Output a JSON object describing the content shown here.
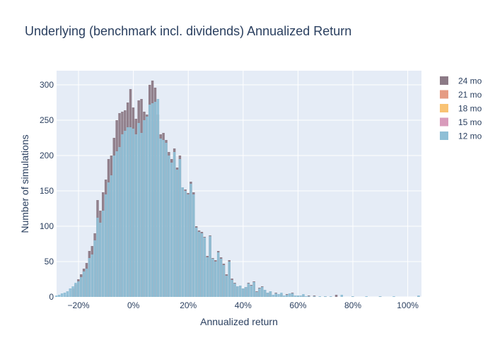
{
  "chart_data": {
    "type": "bar",
    "barmode": "overlay",
    "title": "Underlying (benchmark incl. dividends) Annualized Return",
    "xlabel": "Annualized return",
    "ylabel": "Number of simulations",
    "xlim": [
      -0.28,
      1.05
    ],
    "ylim": [
      0,
      320
    ],
    "bin_width": 0.005,
    "x_ticks": [
      {
        "value": -0.2,
        "label": "−20%"
      },
      {
        "value": 0.0,
        "label": "0%"
      },
      {
        "value": 0.2,
        "label": "20%"
      },
      {
        "value": 0.4,
        "label": "40%"
      },
      {
        "value": 0.6,
        "label": "60%"
      },
      {
        "value": 0.8,
        "label": "80%"
      },
      {
        "value": 1.0,
        "label": "100%"
      }
    ],
    "y_ticks": [
      0,
      50,
      100,
      150,
      200,
      250,
      300
    ],
    "grid": true,
    "legend_position": "top-right",
    "series": [
      {
        "name": "24 mo",
        "color": "#8c7a86",
        "points": [
          [
            -0.24,
            2
          ],
          [
            -0.22,
            12
          ],
          [
            -0.21,
            18
          ],
          [
            -0.2,
            25
          ],
          [
            -0.19,
            32
          ],
          [
            -0.18,
            40
          ],
          [
            -0.17,
            48
          ],
          [
            -0.16,
            65
          ],
          [
            -0.15,
            72
          ],
          [
            -0.14,
            90
          ],
          [
            -0.13,
            137
          ],
          [
            -0.12,
            122
          ],
          [
            -0.11,
            148
          ],
          [
            -0.1,
            166
          ],
          [
            -0.09,
            195
          ],
          [
            -0.08,
            200
          ],
          [
            -0.07,
            225
          ],
          [
            -0.06,
            250
          ],
          [
            -0.05,
            260
          ],
          [
            -0.04,
            262
          ],
          [
            -0.03,
            264
          ],
          [
            -0.02,
            275
          ],
          [
            -0.01,
            294
          ],
          [
            0.0,
            268
          ],
          [
            0.01,
            252
          ],
          [
            0.02,
            278
          ],
          [
            0.03,
            280
          ],
          [
            0.04,
            262
          ],
          [
            0.05,
            258
          ],
          [
            0.06,
            300
          ],
          [
            0.07,
            306
          ],
          [
            0.08,
            296
          ],
          [
            0.09,
            258
          ],
          [
            0.1,
            230
          ],
          [
            0.11,
            232
          ],
          [
            0.12,
            222
          ],
          [
            0.13,
            205
          ],
          [
            0.14,
            195
          ],
          [
            0.15,
            210
          ],
          [
            0.16,
            183
          ],
          [
            0.17,
            200
          ],
          [
            0.18,
            155
          ],
          [
            0.19,
            152
          ],
          [
            0.2,
            147
          ],
          [
            0.21,
            163
          ],
          [
            0.22,
            148
          ],
          [
            0.23,
            100
          ],
          [
            0.24,
            94
          ],
          [
            0.25,
            92
          ],
          [
            0.26,
            85
          ],
          [
            0.27,
            58
          ],
          [
            0.28,
            87
          ],
          [
            0.29,
            55
          ],
          [
            0.3,
            52
          ],
          [
            0.31,
            65
          ],
          [
            0.32,
            56
          ],
          [
            0.33,
            47
          ],
          [
            0.34,
            32
          ],
          [
            0.35,
            52
          ],
          [
            0.36,
            26
          ],
          [
            0.37,
            20
          ],
          [
            0.38,
            15
          ],
          [
            0.39,
            16
          ],
          [
            0.4,
            12
          ],
          [
            0.41,
            14
          ],
          [
            0.42,
            20
          ],
          [
            0.43,
            17
          ],
          [
            0.44,
            22
          ],
          [
            0.45,
            8
          ],
          [
            0.46,
            13
          ],
          [
            0.47,
            15
          ],
          [
            0.48,
            10
          ],
          [
            0.49,
            6
          ],
          [
            0.5,
            8
          ],
          [
            0.52,
            6
          ],
          [
            0.54,
            4
          ],
          [
            0.56,
            4
          ],
          [
            0.58,
            6
          ],
          [
            0.6,
            2
          ],
          [
            0.62,
            2
          ],
          [
            0.64,
            2
          ],
          [
            0.66,
            2
          ],
          [
            0.7,
            1
          ],
          [
            0.74,
            3
          ],
          [
            0.8,
            1
          ],
          [
            0.9,
            1
          ],
          [
            1.04,
            1
          ]
        ]
      },
      {
        "name": "21 mo",
        "color": "#e59c84",
        "points": []
      },
      {
        "name": "18 mo",
        "color": "#f9c374",
        "points": []
      },
      {
        "name": "15 mo",
        "color": "#d89bbb",
        "points": []
      },
      {
        "name": "12 mo",
        "color": "#8fbfd6",
        "points": [
          [
            -0.28,
            2
          ],
          [
            -0.27,
            3
          ],
          [
            -0.26,
            5
          ],
          [
            -0.25,
            6
          ],
          [
            -0.24,
            8
          ],
          [
            -0.23,
            12
          ],
          [
            -0.22,
            15
          ],
          [
            -0.21,
            20
          ],
          [
            -0.2,
            22
          ],
          [
            -0.19,
            28
          ],
          [
            -0.18,
            36
          ],
          [
            -0.17,
            40
          ],
          [
            -0.16,
            55
          ],
          [
            -0.15,
            60
          ],
          [
            -0.14,
            80
          ],
          [
            -0.13,
            112
          ],
          [
            -0.12,
            105
          ],
          [
            -0.11,
            122
          ],
          [
            -0.1,
            145
          ],
          [
            -0.09,
            162
          ],
          [
            -0.08,
            172
          ],
          [
            -0.07,
            200
          ],
          [
            -0.06,
            206
          ],
          [
            -0.05,
            212
          ],
          [
            -0.04,
            230
          ],
          [
            -0.03,
            235
          ],
          [
            -0.02,
            240
          ],
          [
            -0.01,
            240
          ],
          [
            0.0,
            238
          ],
          [
            0.01,
            230
          ],
          [
            0.02,
            246
          ],
          [
            0.03,
            232
          ],
          [
            0.04,
            250
          ],
          [
            0.05,
            255
          ],
          [
            0.06,
            272
          ],
          [
            0.07,
            274
          ],
          [
            0.08,
            276
          ],
          [
            0.09,
            280
          ],
          [
            0.1,
            224
          ],
          [
            0.11,
            222
          ],
          [
            0.12,
            218
          ],
          [
            0.13,
            200
          ],
          [
            0.14,
            190
          ],
          [
            0.15,
            205
          ],
          [
            0.16,
            180
          ],
          [
            0.17,
            195
          ],
          [
            0.18,
            155
          ],
          [
            0.19,
            150
          ],
          [
            0.2,
            145
          ],
          [
            0.21,
            160
          ],
          [
            0.22,
            145
          ],
          [
            0.23,
            98
          ],
          [
            0.24,
            92
          ],
          [
            0.25,
            90
          ],
          [
            0.26,
            84
          ],
          [
            0.27,
            56
          ],
          [
            0.28,
            86
          ],
          [
            0.29,
            54
          ],
          [
            0.3,
            50
          ],
          [
            0.31,
            63
          ],
          [
            0.32,
            54
          ],
          [
            0.33,
            45
          ],
          [
            0.34,
            30
          ],
          [
            0.35,
            50
          ],
          [
            0.36,
            24
          ],
          [
            0.37,
            19
          ],
          [
            0.38,
            15
          ],
          [
            0.39,
            16
          ],
          [
            0.4,
            12
          ],
          [
            0.41,
            14
          ],
          [
            0.42,
            19
          ],
          [
            0.43,
            16
          ],
          [
            0.44,
            21
          ],
          [
            0.45,
            7
          ],
          [
            0.46,
            12
          ],
          [
            0.47,
            14
          ],
          [
            0.48,
            10
          ],
          [
            0.49,
            6
          ],
          [
            0.5,
            8
          ],
          [
            0.51,
            3
          ],
          [
            0.52,
            5
          ],
          [
            0.53,
            4
          ],
          [
            0.54,
            6
          ],
          [
            0.55,
            2
          ],
          [
            0.56,
            3
          ],
          [
            0.57,
            5
          ],
          [
            0.58,
            5
          ],
          [
            0.59,
            2
          ],
          [
            0.6,
            2
          ],
          [
            0.61,
            2
          ],
          [
            0.62,
            4
          ],
          [
            0.63,
            1
          ],
          [
            0.64,
            1
          ],
          [
            0.66,
            1
          ],
          [
            0.68,
            1
          ],
          [
            0.7,
            1
          ],
          [
            0.72,
            1
          ],
          [
            0.76,
            3
          ],
          [
            0.8,
            1
          ],
          [
            0.85,
            1
          ],
          [
            0.9,
            1
          ],
          [
            0.95,
            1
          ],
          [
            1.04,
            2
          ]
        ]
      }
    ]
  }
}
